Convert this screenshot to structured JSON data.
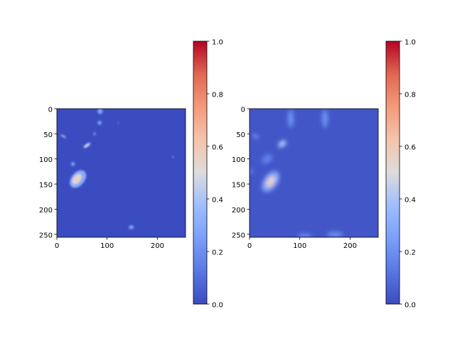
{
  "chart_data": [
    {
      "type": "heatmap",
      "title": "",
      "xlabel": "",
      "ylabel": "",
      "xlim": [
        0,
        256
      ],
      "ylim": [
        256,
        0
      ],
      "xticks": [
        "0",
        "100",
        "200"
      ],
      "yticks": [
        "0",
        "50",
        "100",
        "150",
        "200",
        "250"
      ],
      "background_value": 0.0,
      "blobs": [
        {
          "x": 42,
          "y": 140,
          "rx": 20,
          "ry": 13,
          "angle": -50,
          "value": 0.3
        },
        {
          "x": 40,
          "y": 140,
          "rx": 12,
          "ry": 7,
          "angle": -50,
          "value": 0.55
        },
        {
          "x": 60,
          "y": 73,
          "rx": 8,
          "ry": 3,
          "angle": -35,
          "value": 0.45
        },
        {
          "x": 13,
          "y": 55,
          "rx": 6,
          "ry": 1.5,
          "angle": 30,
          "value": 0.45
        },
        {
          "x": 86,
          "y": 5,
          "rx": 5,
          "ry": 6,
          "angle": 0,
          "value": 0.25
        },
        {
          "x": 85,
          "y": 28,
          "rx": 4,
          "ry": 4,
          "angle": 0,
          "value": 0.25
        },
        {
          "x": 32,
          "y": 110,
          "rx": 4,
          "ry": 4,
          "angle": 0,
          "value": 0.25
        },
        {
          "x": 75,
          "y": 50,
          "rx": 2,
          "ry": 3,
          "angle": 0,
          "value": 0.25
        },
        {
          "x": 148,
          "y": 236,
          "rx": 5,
          "ry": 4,
          "angle": 0,
          "value": 0.25
        },
        {
          "x": 231,
          "y": 96,
          "rx": 1.5,
          "ry": 2,
          "angle": 0,
          "value": 0.25
        },
        {
          "x": 122,
          "y": 28,
          "rx": 1.5,
          "ry": 1.5,
          "angle": 0,
          "value": 0.25
        }
      ],
      "colorbar": {
        "colormap": "coolwarm",
        "range": [
          0,
          1
        ],
        "ticks": [
          "0.0",
          "0.2",
          "0.4",
          "0.6",
          "0.8",
          "1.0"
        ]
      }
    },
    {
      "type": "heatmap",
      "title": "",
      "xlabel": "",
      "ylabel": "",
      "xlim": [
        0,
        256
      ],
      "ylim": [
        256,
        0
      ],
      "xticks": [
        "0",
        "100",
        "200"
      ],
      "yticks": [
        "0",
        "50",
        "100",
        "150",
        "200",
        "250"
      ],
      "background_value": 0.03,
      "blobs": [
        {
          "x": 42,
          "y": 145,
          "rx": 24,
          "ry": 14,
          "angle": -55,
          "value": 0.25
        },
        {
          "x": 42,
          "y": 145,
          "rx": 13,
          "ry": 7,
          "angle": -55,
          "value": 0.55
        },
        {
          "x": 65,
          "y": 70,
          "rx": 9,
          "ry": 6,
          "angle": -40,
          "value": 0.4
        },
        {
          "x": 35,
          "y": 100,
          "rx": 12,
          "ry": 8,
          "angle": -40,
          "value": 0.15
        },
        {
          "x": 82,
          "y": 20,
          "rx": 6,
          "ry": 18,
          "angle": 0,
          "value": 0.2
        },
        {
          "x": 150,
          "y": 20,
          "rx": 6,
          "ry": 18,
          "angle": 0,
          "value": 0.2
        },
        {
          "x": 12,
          "y": 55,
          "rx": 7,
          "ry": 3,
          "angle": 30,
          "value": 0.25
        },
        {
          "x": 110,
          "y": 253,
          "rx": 14,
          "ry": 4,
          "angle": 0,
          "value": 0.2
        },
        {
          "x": 170,
          "y": 250,
          "rx": 16,
          "ry": 5,
          "angle": 0,
          "value": 0.2
        },
        {
          "x": 3,
          "y": 125,
          "rx": 3,
          "ry": 4,
          "angle": 0,
          "value": 0.25
        }
      ],
      "colorbar": {
        "colormap": "coolwarm",
        "range": [
          0,
          1
        ],
        "ticks": [
          "0.0",
          "0.2",
          "0.4",
          "0.6",
          "0.8",
          "1.0"
        ]
      }
    }
  ]
}
